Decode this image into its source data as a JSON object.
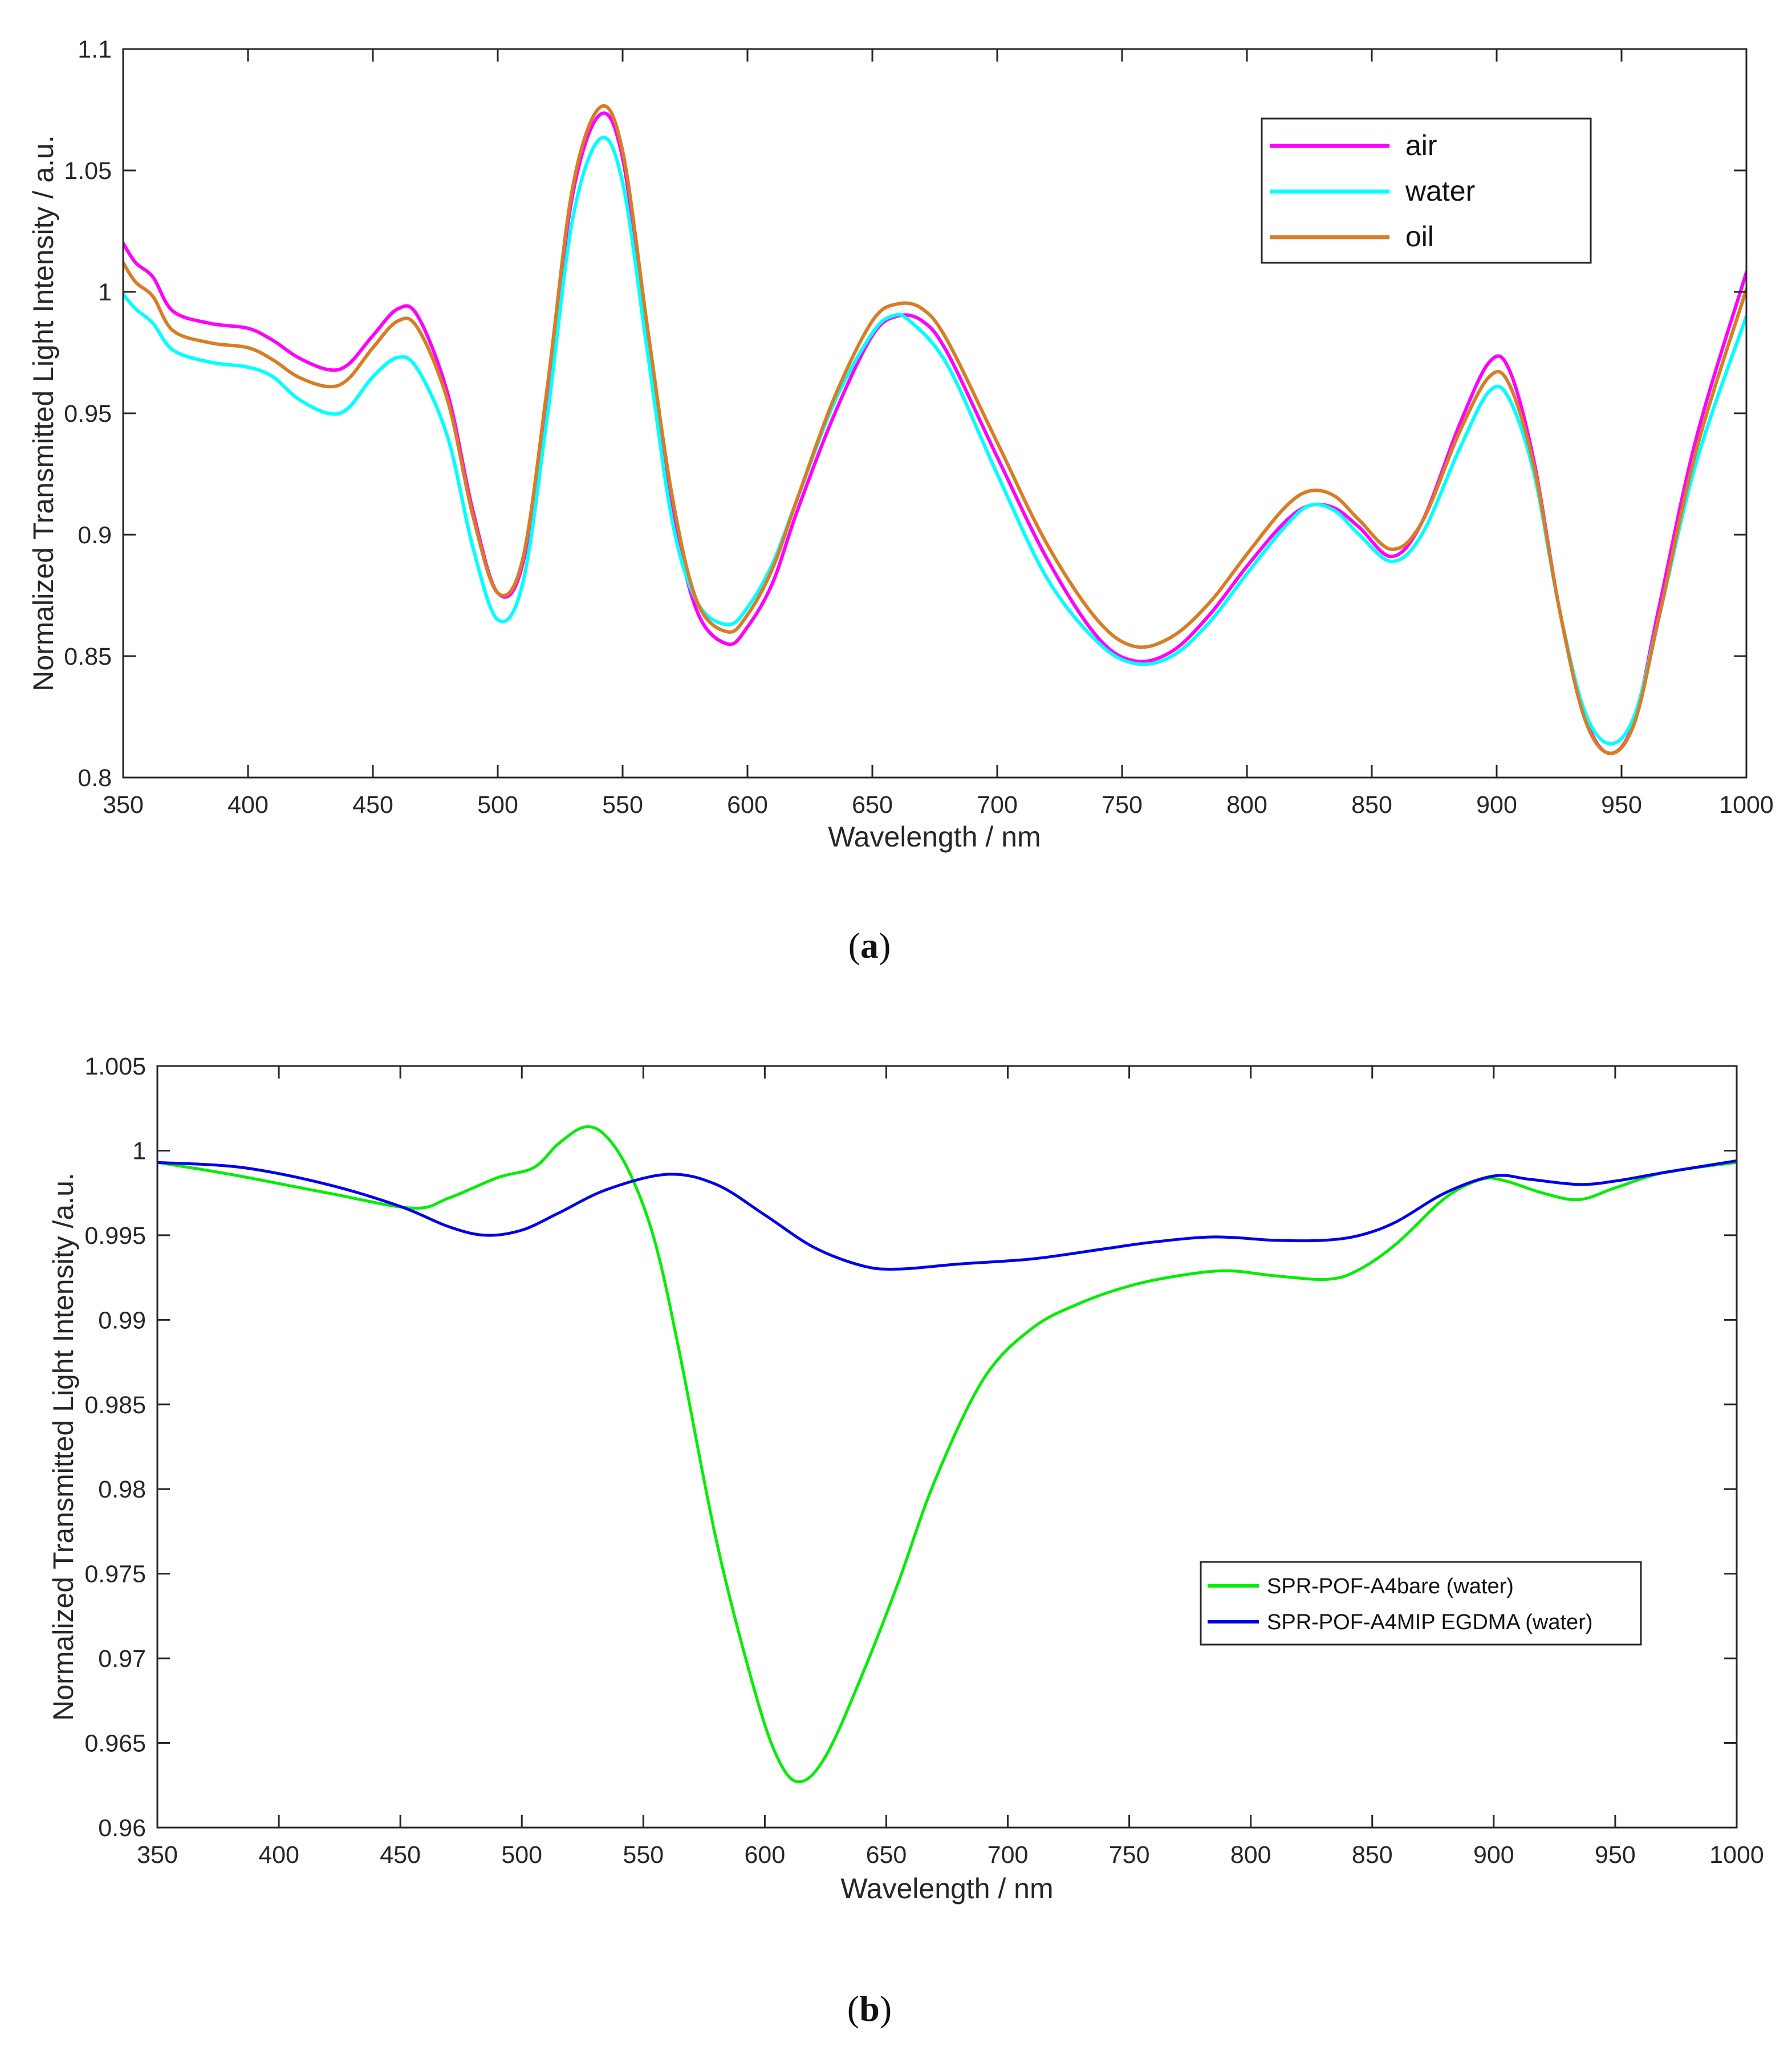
{
  "chart_data": [
    {
      "type": "line",
      "panel": "a",
      "caption_letter": "a",
      "xlabel": "Wavelength / nm",
      "ylabel": "Normalized Transmitted Light Intensity  / a.u.",
      "xlim": [
        350,
        1000
      ],
      "ylim": [
        0.8,
        1.1
      ],
      "xticks": [
        350,
        400,
        450,
        500,
        550,
        600,
        650,
        700,
        750,
        800,
        850,
        900,
        950,
        1000
      ],
      "yticks": [
        0.8,
        0.85,
        0.9,
        0.95,
        1,
        1.05,
        1.1
      ],
      "ytick_labels": [
        "0.8",
        "0.85",
        "0.9",
        "0.95",
        "1",
        "1.05",
        "1.1"
      ],
      "grid": false,
      "legend_position": "top-right",
      "series": [
        {
          "name": "air",
          "color": "#ff00ff",
          "points": [
            [
              350,
              1.02
            ],
            [
              355,
              1.012
            ],
            [
              362,
              1.006
            ],
            [
              370,
              0.992
            ],
            [
              385,
              0.987
            ],
            [
              400,
              0.985
            ],
            [
              410,
              0.98
            ],
            [
              420,
              0.973
            ],
            [
              432,
              0.968
            ],
            [
              440,
              0.97
            ],
            [
              450,
              0.982
            ],
            [
              460,
              0.993
            ],
            [
              468,
              0.99
            ],
            [
              480,
              0.958
            ],
            [
              490,
              0.91
            ],
            [
              500,
              0.876
            ],
            [
              510,
              0.888
            ],
            [
              520,
              0.96
            ],
            [
              530,
              1.04
            ],
            [
              541,
              1.073
            ],
            [
              550,
              1.055
            ],
            [
              560,
              0.98
            ],
            [
              570,
              0.91
            ],
            [
              580,
              0.868
            ],
            [
              592,
              0.855
            ],
            [
              600,
              0.862
            ],
            [
              610,
              0.88
            ],
            [
              620,
              0.91
            ],
            [
              635,
              0.95
            ],
            [
              650,
              0.982
            ],
            [
              660,
              0.99
            ],
            [
              670,
              0.988
            ],
            [
              680,
              0.975
            ],
            [
              700,
              0.932
            ],
            [
              720,
              0.89
            ],
            [
              740,
              0.858
            ],
            [
              755,
              0.848
            ],
            [
              770,
              0.852
            ],
            [
              785,
              0.867
            ],
            [
              800,
              0.887
            ],
            [
              815,
              0.905
            ],
            [
              825,
              0.912
            ],
            [
              835,
              0.911
            ],
            [
              845,
              0.903
            ],
            [
              858,
              0.891
            ],
            [
              870,
              0.905
            ],
            [
              885,
              0.945
            ],
            [
              897,
              0.971
            ],
            [
              905,
              0.968
            ],
            [
              915,
              0.93
            ],
            [
              925,
              0.87
            ],
            [
              935,
              0.826
            ],
            [
              945,
              0.81
            ],
            [
              955,
              0.823
            ],
            [
              965,
              0.87
            ],
            [
              980,
              0.94
            ],
            [
              1000,
              1.008
            ]
          ]
        },
        {
          "name": "water",
          "color": "#00ffff",
          "points": [
            [
              350,
              0.999
            ],
            [
              355,
              0.993
            ],
            [
              362,
              0.987
            ],
            [
              370,
              0.976
            ],
            [
              385,
              0.971
            ],
            [
              400,
              0.969
            ],
            [
              410,
              0.965
            ],
            [
              420,
              0.956
            ],
            [
              432,
              0.95
            ],
            [
              440,
              0.952
            ],
            [
              450,
              0.965
            ],
            [
              460,
              0.973
            ],
            [
              468,
              0.968
            ],
            [
              480,
              0.94
            ],
            [
              490,
              0.895
            ],
            [
              500,
              0.865
            ],
            [
              510,
              0.88
            ],
            [
              520,
              0.95
            ],
            [
              530,
              1.03
            ],
            [
              541,
              1.063
            ],
            [
              550,
              1.045
            ],
            [
              560,
              0.975
            ],
            [
              570,
              0.905
            ],
            [
              580,
              0.872
            ],
            [
              592,
              0.863
            ],
            [
              600,
              0.87
            ],
            [
              610,
              0.888
            ],
            [
              620,
              0.915
            ],
            [
              635,
              0.955
            ],
            [
              650,
              0.983
            ],
            [
              658,
              0.99
            ],
            [
              665,
              0.988
            ],
            [
              680,
              0.97
            ],
            [
              700,
              0.925
            ],
            [
              720,
              0.882
            ],
            [
              740,
              0.856
            ],
            [
              755,
              0.847
            ],
            [
              770,
              0.85
            ],
            [
              785,
              0.864
            ],
            [
              800,
              0.884
            ],
            [
              815,
              0.903
            ],
            [
              825,
              0.912
            ],
            [
              835,
              0.91
            ],
            [
              845,
              0.9
            ],
            [
              858,
              0.889
            ],
            [
              870,
              0.9
            ],
            [
              885,
              0.935
            ],
            [
              897,
              0.959
            ],
            [
              905,
              0.956
            ],
            [
              915,
              0.925
            ],
            [
              925,
              0.87
            ],
            [
              935,
              0.828
            ],
            [
              945,
              0.814
            ],
            [
              955,
              0.825
            ],
            [
              965,
              0.866
            ],
            [
              980,
              0.93
            ],
            [
              1000,
              0.99
            ]
          ]
        },
        {
          "name": "oil",
          "color": "#d97c24",
          "points": [
            [
              350,
              1.012
            ],
            [
              355,
              1.004
            ],
            [
              362,
              0.998
            ],
            [
              370,
              0.984
            ],
            [
              385,
              0.979
            ],
            [
              400,
              0.977
            ],
            [
              410,
              0.972
            ],
            [
              420,
              0.965
            ],
            [
              432,
              0.961
            ],
            [
              440,
              0.964
            ],
            [
              450,
              0.977
            ],
            [
              460,
              0.988
            ],
            [
              468,
              0.985
            ],
            [
              480,
              0.955
            ],
            [
              490,
              0.908
            ],
            [
              500,
              0.876
            ],
            [
              510,
              0.89
            ],
            [
              520,
              0.962
            ],
            [
              530,
              1.043
            ],
            [
              541,
              1.076
            ],
            [
              550,
              1.058
            ],
            [
              560,
              0.985
            ],
            [
              570,
              0.915
            ],
            [
              580,
              0.872
            ],
            [
              592,
              0.86
            ],
            [
              600,
              0.867
            ],
            [
              610,
              0.886
            ],
            [
              620,
              0.915
            ],
            [
              635,
              0.957
            ],
            [
              650,
              0.988
            ],
            [
              660,
              0.995
            ],
            [
              670,
              0.993
            ],
            [
              680,
              0.98
            ],
            [
              700,
              0.938
            ],
            [
              720,
              0.896
            ],
            [
              740,
              0.865
            ],
            [
              755,
              0.854
            ],
            [
              770,
              0.858
            ],
            [
              785,
              0.872
            ],
            [
              800,
              0.892
            ],
            [
              815,
              0.911
            ],
            [
              825,
              0.918
            ],
            [
              835,
              0.916
            ],
            [
              845,
              0.906
            ],
            [
              858,
              0.894
            ],
            [
              870,
              0.905
            ],
            [
              885,
              0.942
            ],
            [
              897,
              0.965
            ],
            [
              905,
              0.962
            ],
            [
              915,
              0.928
            ],
            [
              925,
              0.87
            ],
            [
              935,
              0.825
            ],
            [
              945,
              0.81
            ],
            [
              955,
              0.822
            ],
            [
              965,
              0.866
            ],
            [
              980,
              0.935
            ],
            [
              1000,
              1.001
            ]
          ]
        }
      ]
    },
    {
      "type": "line",
      "panel": "b",
      "caption_letter": "b",
      "xlabel": "Wavelength / nm",
      "ylabel": "Normalized Transmitted Light Intensity  /a.u.",
      "xlim": [
        350,
        1000
      ],
      "ylim": [
        0.96,
        1.005
      ],
      "xticks": [
        350,
        400,
        450,
        500,
        550,
        600,
        650,
        700,
        750,
        800,
        850,
        900,
        950,
        1000
      ],
      "yticks": [
        0.96,
        0.965,
        0.97,
        0.975,
        0.98,
        0.985,
        0.99,
        0.995,
        1,
        1.005
      ],
      "ytick_labels": [
        "0.96",
        "0.965",
        "0.97",
        "0.975",
        "0.98",
        "0.985",
        "0.99",
        "0.995",
        "1",
        "1.005"
      ],
      "grid": false,
      "legend_position": "lower-right",
      "series": [
        {
          "name": "SPR-POF-A4bare (water)",
          "color": "#00ee00",
          "points": [
            [
              350,
              0.9993
            ],
            [
              380,
              0.9986
            ],
            [
              420,
              0.9975
            ],
            [
              455,
              0.9966
            ],
            [
              470,
              0.9972
            ],
            [
              490,
              0.9984
            ],
            [
              505,
              0.999
            ],
            [
              515,
              1.0004
            ],
            [
              526,
              1.0014
            ],
            [
              535,
              1.0008
            ],
            [
              545,
              0.9985
            ],
            [
              555,
              0.9945
            ],
            [
              565,
              0.988
            ],
            [
              580,
              0.977
            ],
            [
              595,
              0.9685
            ],
            [
              605,
              0.9642
            ],
            [
              614,
              0.9627
            ],
            [
              625,
              0.9642
            ],
            [
              640,
              0.969
            ],
            [
              655,
              0.9745
            ],
            [
              670,
              0.9805
            ],
            [
              690,
              0.9865
            ],
            [
              710,
              0.9895
            ],
            [
              730,
              0.991
            ],
            [
              750,
              0.992
            ],
            [
              770,
              0.9926
            ],
            [
              790,
              0.9929
            ],
            [
              810,
              0.9926
            ],
            [
              832,
              0.9924
            ],
            [
              845,
              0.993
            ],
            [
              860,
              0.9945
            ],
            [
              880,
              0.9972
            ],
            [
              895,
              0.9983
            ],
            [
              905,
              0.9982
            ],
            [
              920,
              0.9975
            ],
            [
              935,
              0.9971
            ],
            [
              950,
              0.9978
            ],
            [
              970,
              0.9987
            ],
            [
              1000,
              0.9993
            ]
          ]
        },
        {
          "name": "SPR-POF-A4MIP EGDMA (water)",
          "color": "#0000ee",
          "points": [
            [
              350,
              0.9993
            ],
            [
              385,
              0.999
            ],
            [
              420,
              0.998
            ],
            [
              450,
              0.9967
            ],
            [
              470,
              0.9955
            ],
            [
              485,
              0.995
            ],
            [
              500,
              0.9953
            ],
            [
              515,
              0.9963
            ],
            [
              535,
              0.9977
            ],
            [
              560,
              0.9986
            ],
            [
              580,
              0.998
            ],
            [
              600,
              0.9962
            ],
            [
              620,
              0.9943
            ],
            [
              640,
              0.9932
            ],
            [
              655,
              0.993
            ],
            [
              680,
              0.9933
            ],
            [
              710,
              0.9936
            ],
            [
              740,
              0.9942
            ],
            [
              760,
              0.9946
            ],
            [
              785,
              0.9949
            ],
            [
              810,
              0.9947
            ],
            [
              830,
              0.9947
            ],
            [
              845,
              0.995
            ],
            [
              860,
              0.9958
            ],
            [
              880,
              0.9975
            ],
            [
              900,
              0.9985
            ],
            [
              915,
              0.9983
            ],
            [
              935,
              0.998
            ],
            [
              950,
              0.9982
            ],
            [
              970,
              0.9987
            ],
            [
              1000,
              0.9994
            ]
          ]
        }
      ]
    }
  ]
}
